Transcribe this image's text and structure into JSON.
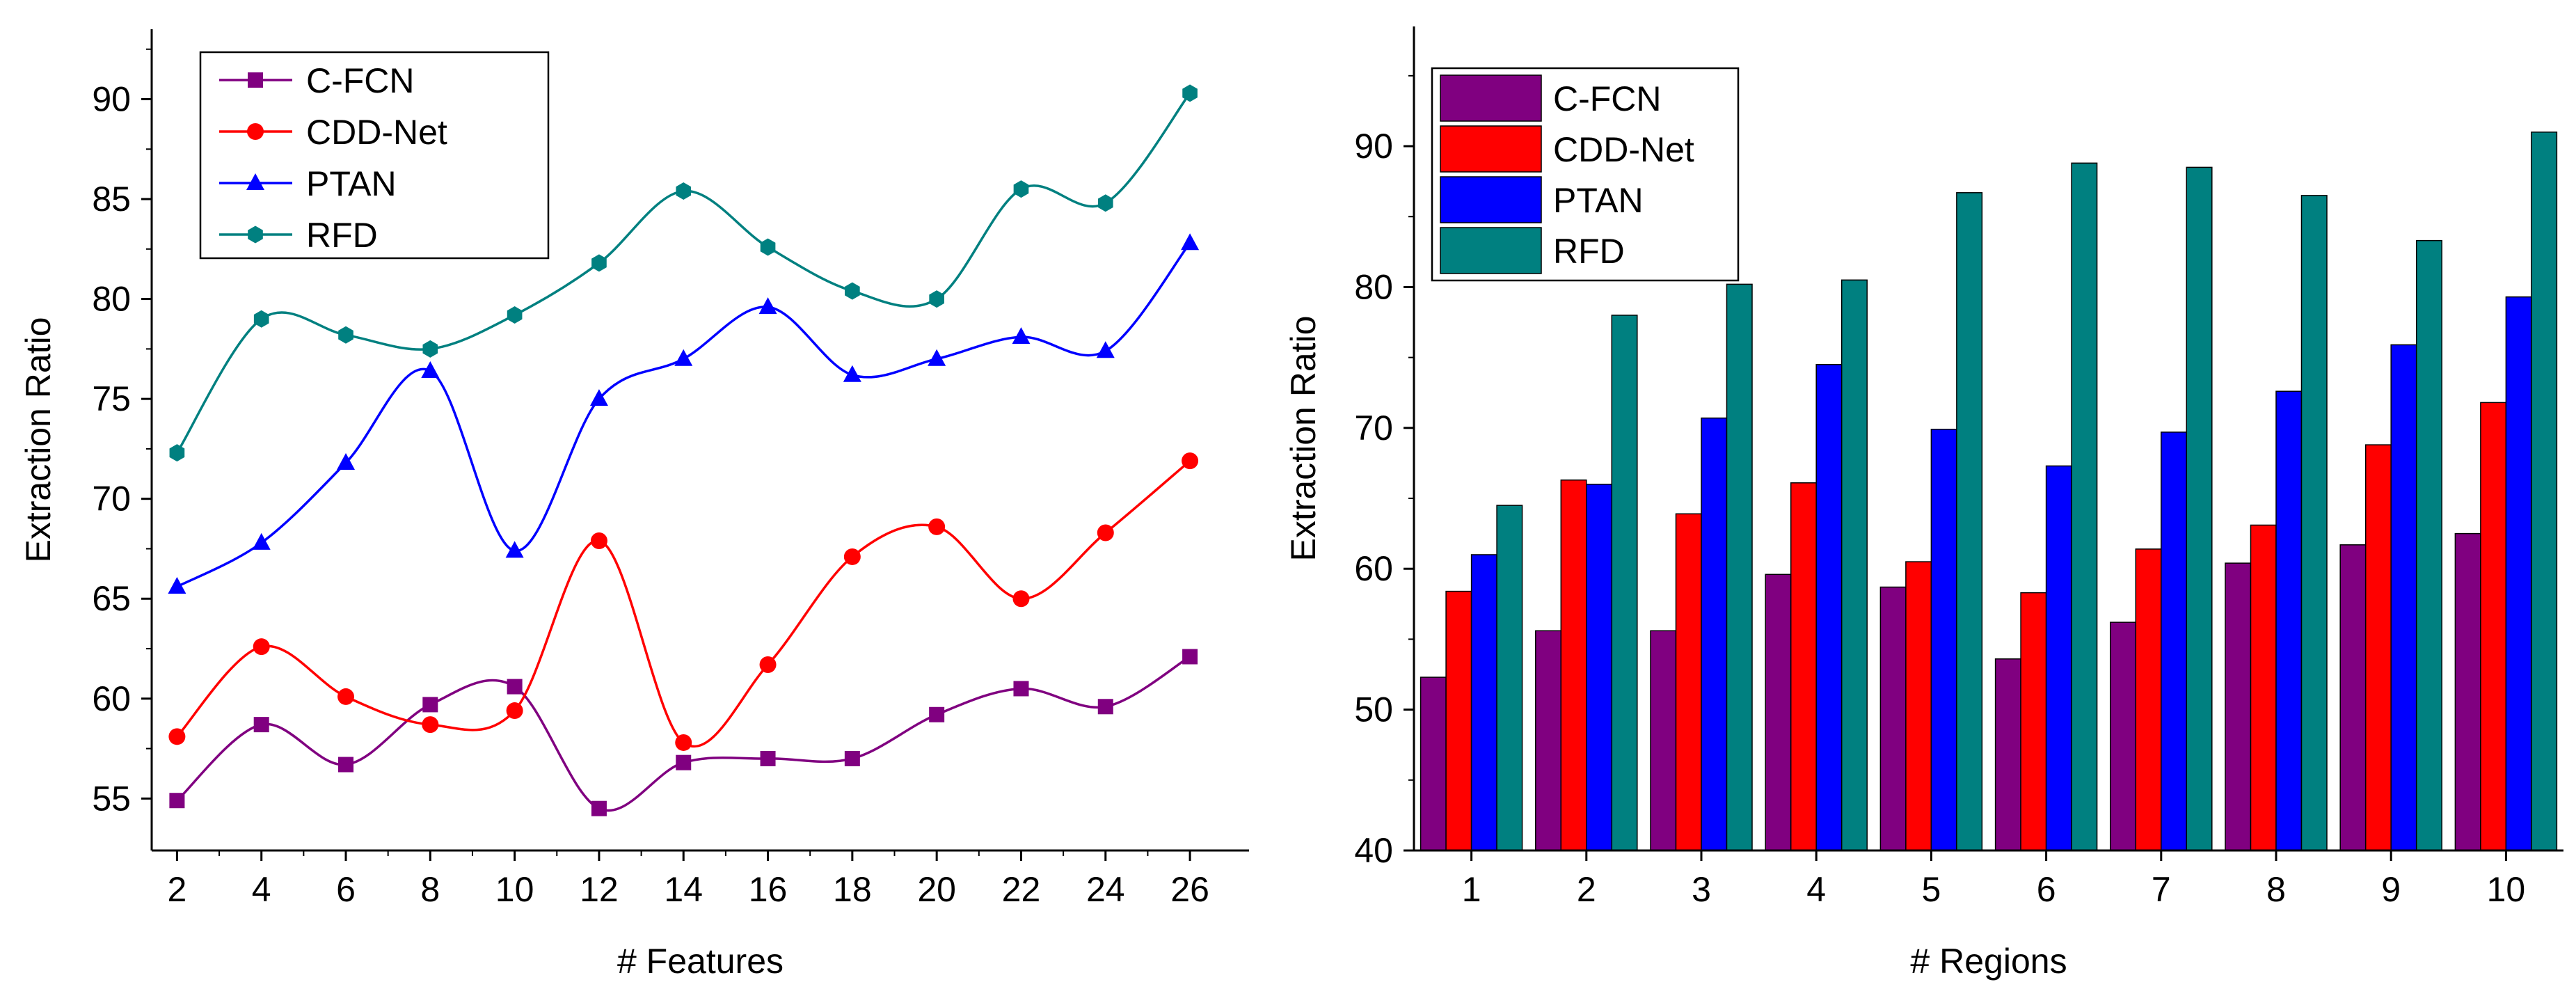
{
  "chart_data": [
    {
      "type": "line",
      "xlabel": "# Features",
      "ylabel": "Extraction Ratio",
      "x": [
        2,
        4,
        6,
        8,
        10,
        12,
        14,
        16,
        18,
        20,
        22,
        24,
        26
      ],
      "xlim": [
        1.4,
        27.4
      ],
      "ylim": [
        52.4,
        93.5
      ],
      "yticks": [
        55,
        60,
        65,
        70,
        75,
        80,
        85,
        90
      ],
      "legend_position": "top-left",
      "series": [
        {
          "name": "C-FCN",
          "color": "#800080",
          "marker": "square",
          "values": [
            54.9,
            58.7,
            56.7,
            59.7,
            60.6,
            54.5,
            56.8,
            57.0,
            57.0,
            59.2,
            60.5,
            59.6,
            62.1
          ]
        },
        {
          "name": "CDD-Net",
          "color": "#ff0000",
          "marker": "circle",
          "values": [
            58.1,
            62.6,
            60.1,
            58.7,
            59.4,
            67.9,
            57.8,
            61.7,
            67.1,
            68.6,
            65.0,
            68.3,
            71.9
          ]
        },
        {
          "name": "PTAN",
          "color": "#0000ff",
          "marker": "triangle",
          "values": [
            65.6,
            67.8,
            71.8,
            76.4,
            67.4,
            75.0,
            77.0,
            79.6,
            76.2,
            77.0,
            78.1,
            77.4,
            82.8
          ]
        },
        {
          "name": "RFD",
          "color": "#008080",
          "marker": "hexagon",
          "values": [
            72.3,
            79.0,
            78.2,
            77.5,
            79.2,
            81.8,
            85.4,
            82.6,
            80.4,
            80.0,
            85.5,
            84.8,
            90.3
          ]
        }
      ]
    },
    {
      "type": "bar",
      "xlabel": "# Regions",
      "ylabel": "Extraction Ratio",
      "categories": [
        "1",
        "2",
        "3",
        "4",
        "5",
        "6",
        "7",
        "8",
        "9",
        "10"
      ],
      "ylim": [
        40,
        98.5
      ],
      "yticks": [
        40,
        50,
        60,
        70,
        80,
        90
      ],
      "legend_position": "top-left",
      "series": [
        {
          "name": "C-FCN",
          "color": "#800080",
          "values": [
            52.3,
            55.6,
            55.6,
            59.6,
            58.7,
            53.6,
            56.2,
            60.4,
            61.7,
            62.5
          ]
        },
        {
          "name": "CDD-Net",
          "color": "#ff0000",
          "values": [
            58.4,
            66.3,
            63.9,
            66.1,
            60.5,
            58.3,
            61.4,
            63.1,
            68.8,
            71.8
          ]
        },
        {
          "name": "PTAN",
          "color": "#0000ff",
          "values": [
            61.0,
            66.0,
            70.7,
            74.5,
            69.9,
            67.3,
            69.7,
            72.6,
            75.9,
            79.3
          ]
        },
        {
          "name": "RFD",
          "color": "#008080",
          "values": [
            64.5,
            78.0,
            80.2,
            80.5,
            86.7,
            88.8,
            88.5,
            86.5,
            83.3,
            91.0
          ]
        }
      ]
    }
  ]
}
